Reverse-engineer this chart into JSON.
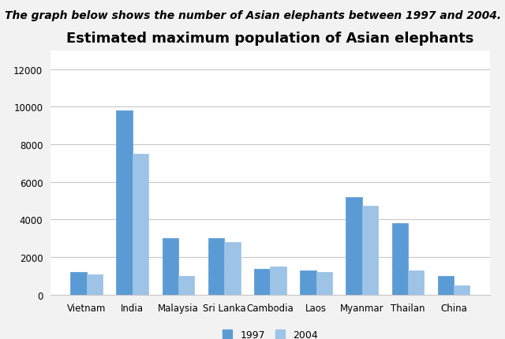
{
  "title": "Estimated maximum population of Asian elephants",
  "suptitle": "The graph below shows the number of Asian elephants between 1997 and 2004.",
  "categories": [
    "Vietnam",
    "India",
    "Malaysia",
    "Sri Lanka",
    "Cambodia",
    "Laos",
    "Myanmar",
    "Thailan",
    "China"
  ],
  "values_1997": [
    1200,
    9800,
    3000,
    3000,
    1400,
    1300,
    5200,
    3800,
    1000
  ],
  "values_2004": [
    1100,
    7500,
    1000,
    2800,
    1500,
    1200,
    4750,
    1300,
    500
  ],
  "color_1997": "#5B9BD5",
  "color_2004": "#9DC3E6",
  "hatch_1997": "///",
  "hatch_2004": "....",
  "ylim": [
    0,
    13000
  ],
  "yticks": [
    0,
    2000,
    4000,
    6000,
    8000,
    10000,
    12000
  ],
  "legend_labels": [
    "1997",
    "2004"
  ],
  "bar_width": 0.35,
  "figure_bg": "#f2f2f2",
  "axes_bg": "#ffffff",
  "grid_color": "#c8c8c8",
  "title_fontsize": 13,
  "suptitle_fontsize": 10,
  "border_color": "#c8c8c8"
}
